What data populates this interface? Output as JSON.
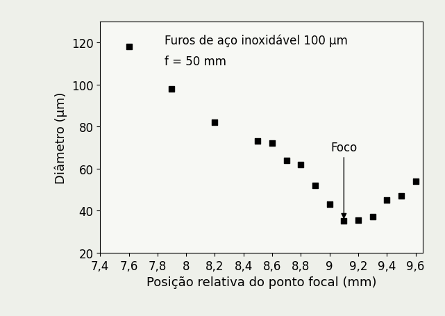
{
  "chart_data": {
    "type": "scatter",
    "text_lines": [
      "Furos de aço inoxidável 100 µm",
      "f = 50 mm"
    ],
    "x_label": "Posição relativa do ponto focal (mm)",
    "y_label": "Diâmetro (µm)",
    "x": [
      7.6,
      7.9,
      8.2,
      8.5,
      8.6,
      8.7,
      8.8,
      8.9,
      9.0,
      9.1,
      9.2,
      9.3,
      9.4,
      9.5,
      9.6
    ],
    "values": [
      118,
      98,
      82,
      73,
      72,
      64,
      62,
      52,
      43,
      35,
      35.5,
      37,
      45,
      47,
      54
    ],
    "color": "#000000",
    "marker": "square",
    "annotations": [
      {
        "text": "Foco",
        "x": 9.1,
        "y": 35
      }
    ],
    "xlim": [
      7.4,
      9.65
    ],
    "xticks": [
      {
        "value": 7.4,
        "label": "7,4"
      },
      {
        "value": 7.6,
        "label": "7,6"
      },
      {
        "value": 7.8,
        "label": "7,8"
      },
      8,
      {
        "value": 8.2,
        "label": "8,2"
      },
      {
        "value": 8.4,
        "label": "8,4"
      },
      {
        "value": 8.6,
        "label": "8,6"
      },
      {
        "value": 8.8,
        "label": "8,8"
      },
      9,
      {
        "value": 9.2,
        "label": "9,2"
      },
      {
        "value": 9.4,
        "label": "9,4"
      },
      {
        "value": 9.6,
        "label": "9,6"
      }
    ],
    "ylim": [
      20,
      130
    ],
    "yticks": [
      20,
      40,
      60,
      80,
      100,
      120
    ],
    "grid": false
  }
}
